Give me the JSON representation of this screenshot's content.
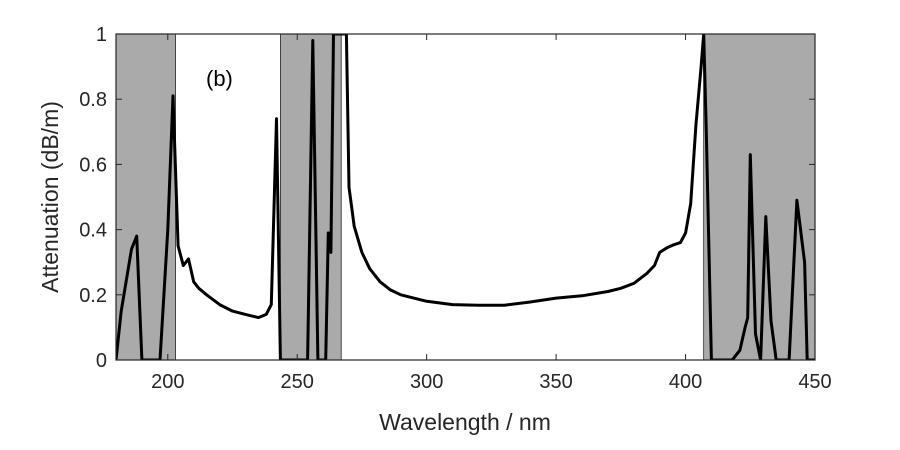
{
  "chart_data": {
    "type": "line",
    "title": "",
    "panel_label": "(b)",
    "xlabel": "Wavelength / nm",
    "ylabel": "Attenuation (dB/m)",
    "xlim": [
      180,
      450
    ],
    "ylim": [
      0,
      1
    ],
    "xticks": [
      200,
      250,
      300,
      350,
      400,
      450
    ],
    "yticks": [
      0,
      0.2,
      0.4,
      0.6,
      0.8,
      1
    ],
    "xtick_labels": [
      "200",
      "250",
      "300",
      "350",
      "400",
      "450"
    ],
    "ytick_labels": [
      "0",
      "0.2",
      "0.4",
      "0.6",
      "0.8",
      "1"
    ],
    "grid": false,
    "shaded_bands": [
      {
        "x0": 180,
        "x1": 203
      },
      {
        "x0": 243.5,
        "x1": 267
      },
      {
        "x0": 407,
        "x1": 450
      }
    ],
    "series": [
      {
        "name": "attenuation",
        "x": [
          180,
          182,
          186,
          188,
          190,
          197,
          200,
          202,
          204,
          206,
          208,
          210,
          212,
          215,
          220,
          225,
          230,
          235,
          238,
          240,
          242,
          243.5,
          245,
          250,
          254,
          256,
          258,
          260,
          261,
          262,
          263,
          264,
          265,
          266,
          267,
          268,
          269,
          270,
          272,
          275,
          278,
          282,
          286,
          290,
          295,
          300,
          310,
          320,
          330,
          340,
          350,
          360,
          370,
          375,
          380,
          385,
          388,
          390,
          393,
          395,
          398,
          400,
          402,
          404,
          406,
          407,
          408,
          410,
          412,
          418,
          421,
          423,
          424,
          425,
          427,
          429,
          431,
          433,
          435,
          437,
          440,
          443,
          446,
          447,
          448,
          450
        ],
        "y": [
          0.0,
          0.15,
          0.34,
          0.38,
          0.0,
          0.0,
          0.4,
          0.81,
          0.35,
          0.29,
          0.31,
          0.24,
          0.22,
          0.2,
          0.17,
          0.15,
          0.14,
          0.13,
          0.14,
          0.17,
          0.74,
          0.0,
          0.0,
          0.0,
          0.0,
          0.98,
          0.0,
          0.0,
          0.0,
          0.39,
          0.33,
          1.0,
          1.0,
          1.0,
          1.0,
          1.0,
          1.0,
          0.53,
          0.41,
          0.33,
          0.28,
          0.24,
          0.215,
          0.2,
          0.19,
          0.18,
          0.17,
          0.168,
          0.168,
          0.178,
          0.19,
          0.197,
          0.21,
          0.22,
          0.235,
          0.265,
          0.29,
          0.33,
          0.345,
          0.352,
          0.36,
          0.39,
          0.48,
          0.72,
          0.9,
          1.0,
          0.7,
          0.0,
          0.0,
          0.0,
          0.03,
          0.1,
          0.13,
          0.63,
          0.08,
          0.0,
          0.44,
          0.12,
          0.0,
          0.0,
          0.0,
          0.49,
          0.3,
          0.0,
          0.0,
          0.0
        ]
      }
    ]
  }
}
